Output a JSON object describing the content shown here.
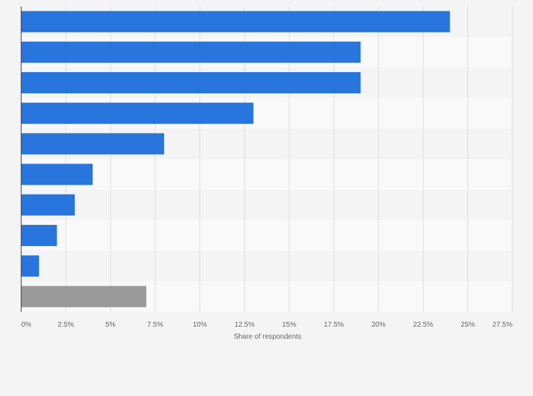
{
  "chart_data": {
    "type": "bar",
    "orientation": "horizontal",
    "xlabel": "Share of respondents",
    "ylabel": "",
    "xlim": [
      0,
      27.5
    ],
    "x_ticks": [
      "0%",
      "2.5%",
      "5%",
      "7.5%",
      "10%",
      "12.5%",
      "15%",
      "17.5%",
      "20%",
      "22.5%",
      "25%",
      "27.5%"
    ],
    "tick_values": [
      0,
      2.5,
      5,
      7.5,
      10,
      12.5,
      15,
      17.5,
      20,
      22.5,
      25,
      27.5
    ],
    "grid": true,
    "legend": "none",
    "values": [
      24,
      19,
      19,
      13,
      8,
      4,
      3,
      2,
      1,
      7
    ],
    "colors": {
      "primary": "#2876dd",
      "other": "#9a9a9a",
      "background": "#f4f4f4",
      "band_light": "#f9f9f9",
      "band_dark": "#f4f4f4",
      "grid": "#dcdcdc",
      "axis": "#333333"
    }
  }
}
